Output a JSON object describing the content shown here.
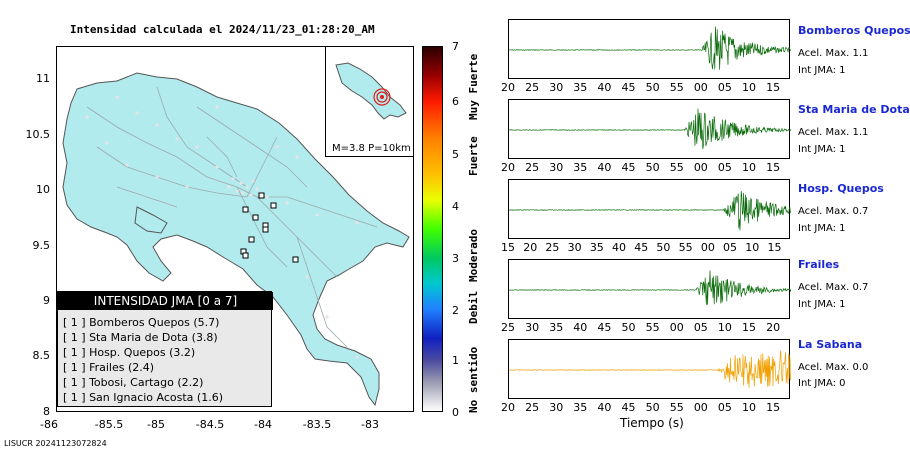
{
  "map": {
    "title": "Intensidad calculada el 2024/11/23_01:28:20_AM",
    "y_ticks": [
      "11",
      "10.5",
      "10",
      "9.5",
      "9",
      "8.5",
      "8"
    ],
    "x_ticks": [
      "-86",
      "-85.5",
      "-85",
      "-84.5",
      "-84",
      "-83.5",
      "-83"
    ],
    "inset_label": "M=3.8 P=10km",
    "colors": {
      "land": "#b2ebee",
      "sea": "#ffffff",
      "epicenter": "#e01b1b",
      "station_dots": "#d8d8d8"
    }
  },
  "legend": {
    "title": "INTENSIDAD JMA [0 a 7]",
    "rows": [
      "[ 1 ]  Bomberos Quepos (5.7)",
      "[ 1 ]  Sta Maria de Dota (3.8)",
      "[ 1 ]  Hosp. Quepos (3.2)",
      "[ 1 ]  Frailes (2.4)",
      "[ 1 ]  Tobosi, Cartago (2.2)",
      "[ 1 ]  San Ignacio Acosta (1.6)"
    ]
  },
  "colorbar": {
    "ticks": [
      "7",
      "6",
      "5",
      "4",
      "3",
      "2",
      "1",
      "0"
    ],
    "labels": [
      "Muy Fuerte",
      "Fuerte",
      "Moderado",
      "Debil",
      "No sentido"
    ]
  },
  "traces": [
    {
      "station": "Bomberos Quepos",
      "acel": "Acel. Max. 1.1",
      "jma": "Int JMA: 1",
      "color": "#0a6b0a",
      "ticks": [
        "20",
        "25",
        "30",
        "35",
        "40",
        "45",
        "50",
        "55",
        "00",
        "05",
        "10",
        "15"
      ]
    },
    {
      "station": "Sta Maria de Dota",
      "acel": "Acel. Max. 1.1",
      "jma": "Int JMA: 1",
      "color": "#0a6b0a",
      "ticks": [
        "20",
        "25",
        "30",
        "35",
        "40",
        "45",
        "50",
        "55",
        "00",
        "05",
        "10",
        "15"
      ]
    },
    {
      "station": "Hosp. Quepos",
      "acel": "Acel. Max. 0.7",
      "jma": "Int JMA: 1",
      "color": "#0a6b0a",
      "ticks": [
        "15",
        "20",
        "25",
        "30",
        "35",
        "40",
        "45",
        "50",
        "55",
        "00",
        "05",
        "10",
        "15"
      ]
    },
    {
      "station": "Frailes",
      "acel": "Acel. Max. 0.7",
      "jma": "Int JMA: 1",
      "color": "#0a6b0a",
      "ticks": [
        "25",
        "30",
        "35",
        "40",
        "45",
        "50",
        "55",
        "00",
        "05",
        "10",
        "15",
        "20"
      ]
    },
    {
      "station": "La Sabana",
      "acel": "Acel. Max. 0.0",
      "jma": "Int JMA: 0",
      "color": "#f0a000",
      "ticks": [
        "20",
        "25",
        "30",
        "35",
        "40",
        "45",
        "50",
        "55",
        "00",
        "05",
        "10",
        "15"
      ]
    }
  ],
  "x_axis_label": "Tiempo (s)",
  "footer": "LISUCR 20241123072824"
}
